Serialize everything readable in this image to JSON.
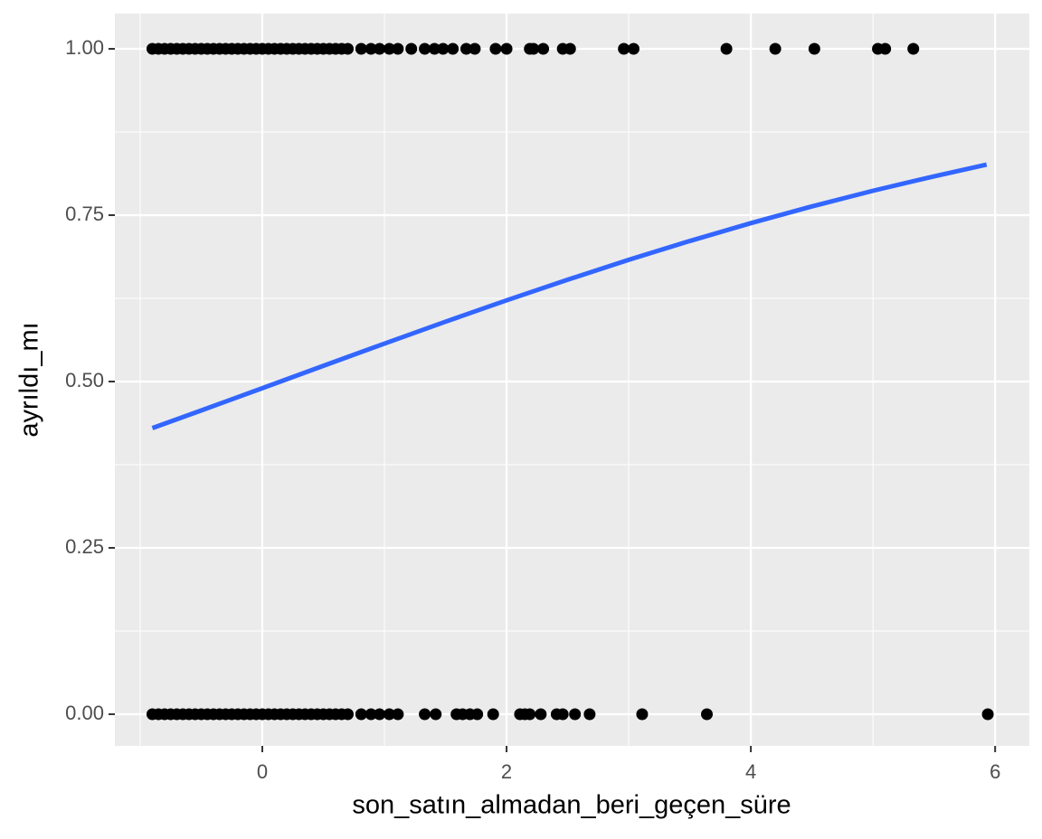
{
  "chart_data": {
    "type": "scatter",
    "x_label": "son_satın_almadan_beri_geçen_süre",
    "y_label": "ayrıldı_mı",
    "color": "#000000",
    "x": [
      -0.9,
      -0.85,
      -0.8,
      -0.75,
      -0.7,
      -0.65,
      -0.6,
      -0.55,
      -0.5,
      -0.45,
      -0.4,
      -0.35,
      -0.3,
      -0.25,
      -0.2,
      -0.15,
      -0.1,
      -0.05,
      0,
      0.05,
      0.1,
      0.15,
      0.2,
      0.25,
      0.3,
      0.35,
      0.4,
      0.45,
      0.5,
      0.55,
      0.6,
      0.65,
      0.7,
      0.81,
      0.89,
      0.96,
      1.04,
      1.11,
      1.22,
      1.33,
      1.41,
      1.48,
      1.56,
      1.67,
      1.74,
      1.91,
      2.0,
      2.19,
      2.22,
      2.3,
      2.46,
      2.52,
      2.96,
      3.04,
      3.8,
      4.2,
      4.52,
      5.04,
      5.1,
      5.33,
      -0.9,
      -0.85,
      -0.8,
      -0.75,
      -0.7,
      -0.65,
      -0.6,
      -0.55,
      -0.5,
      -0.45,
      -0.4,
      -0.35,
      -0.3,
      -0.25,
      -0.2,
      -0.15,
      -0.1,
      -0.05,
      0,
      0.05,
      0.1,
      0.15,
      0.2,
      0.25,
      0.3,
      0.35,
      0.4,
      0.45,
      0.5,
      0.55,
      0.6,
      0.65,
      0.7,
      0.81,
      0.89,
      0.96,
      1.04,
      1.11,
      1.33,
      1.42,
      1.59,
      1.64,
      1.7,
      1.76,
      1.89,
      2.11,
      2.15,
      2.19,
      2.28,
      2.41,
      2.46,
      2.56,
      2.68,
      3.11,
      3.64,
      5.94
    ],
    "values": [
      1,
      1,
      1,
      1,
      1,
      1,
      1,
      1,
      1,
      1,
      1,
      1,
      1,
      1,
      1,
      1,
      1,
      1,
      1,
      1,
      1,
      1,
      1,
      1,
      1,
      1,
      1,
      1,
      1,
      1,
      1,
      1,
      1,
      1,
      1,
      1,
      1,
      1,
      1,
      1,
      1,
      1,
      1,
      1,
      1,
      1,
      1,
      1,
      1,
      1,
      1,
      1,
      1,
      1,
      1,
      1,
      1,
      1,
      1,
      1,
      0,
      0,
      0,
      0,
      0,
      0,
      0,
      0,
      0,
      0,
      0,
      0,
      0,
      0,
      0,
      0,
      0,
      0,
      0,
      0,
      0,
      0,
      0,
      0,
      0,
      0,
      0,
      0,
      0,
      0,
      0,
      0,
      0,
      0,
      0,
      0,
      0,
      0,
      0,
      0,
      0,
      0,
      0,
      0,
      0,
      0,
      0,
      0,
      0,
      0,
      0,
      0,
      0,
      0,
      0,
      0
    ],
    "fit": {
      "color": "#3366ff",
      "x": [
        -0.9,
        -0.5,
        0,
        0.5,
        1,
        1.5,
        2,
        2.5,
        3,
        3.5,
        4,
        4.5,
        5,
        5.5,
        5.93
      ],
      "values": [
        0.43,
        0.4565,
        0.49,
        0.5236,
        0.557,
        0.5899,
        0.622,
        0.653,
        0.6829,
        0.7112,
        0.738,
        0.7632,
        0.7867,
        0.8084,
        0.826
      ]
    },
    "xlim": [
      -1.207,
      6.28
    ],
    "ylim": [
      -0.0476,
      1.053
    ],
    "xticks": [
      0,
      2,
      4,
      6
    ],
    "yticks": [
      {
        "value": 0,
        "label": "0.00"
      },
      {
        "value": 0.25,
        "label": "0.25"
      },
      {
        "value": 0.5,
        "label": "0.50"
      },
      {
        "value": 0.75,
        "label": "0.75"
      },
      {
        "value": 1,
        "label": "1.00"
      }
    ],
    "grid": true
  }
}
